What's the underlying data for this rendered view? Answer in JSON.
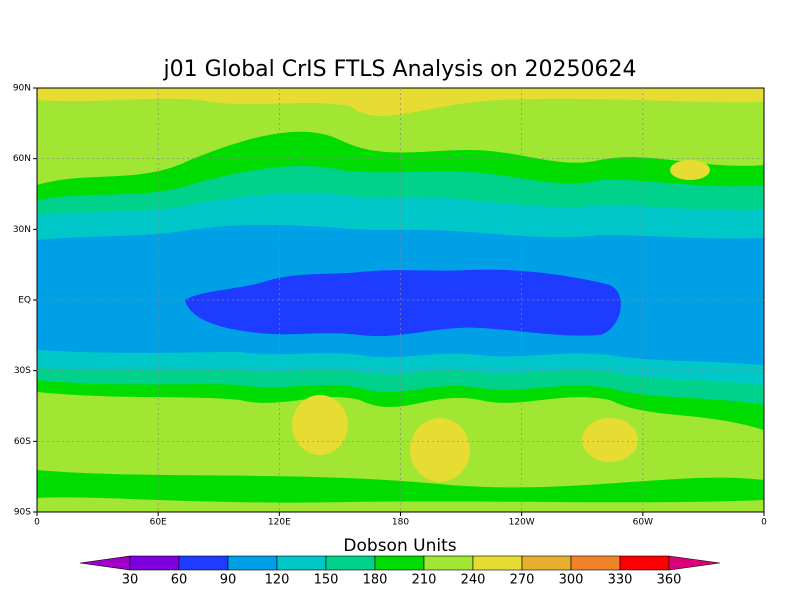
{
  "chart_data": {
    "type": "contour-map",
    "title": "j01 Global CrIS FTLS Analysis on 20250624",
    "xlim": [
      0,
      360
    ],
    "xticks": [
      0,
      {
        "value": 60,
        "label": "60E"
      },
      {
        "value": 120,
        "label": "120E"
      },
      180,
      {
        "value": 240,
        "label": "120W"
      },
      {
        "value": 300,
        "label": "60W"
      },
      {
        "value": 360,
        "label": "0"
      }
    ],
    "ylim": [
      -90,
      90
    ],
    "yticks": [
      {
        "value": 90,
        "label": "90N"
      },
      {
        "value": 60,
        "label": "60N"
      },
      {
        "value": 30,
        "label": "30N"
      },
      {
        "value": 0,
        "label": "EQ"
      },
      {
        "value": -30,
        "label": "30S"
      },
      {
        "value": -60,
        "label": "60S"
      },
      {
        "value": -90,
        "label": "90S"
      }
    ],
    "grid": true,
    "colorbar": {
      "title": "Dobson Units",
      "levels": [
        30,
        60,
        90,
        120,
        150,
        180,
        210,
        240,
        270,
        300,
        330,
        360
      ],
      "colors": [
        "#a000c8",
        "#7d00e0",
        "#1e3cff",
        "#00a0e6",
        "#00c8c8",
        "#00d28c",
        "#00dc00",
        "#a0e632",
        "#e6dc32",
        "#e6af2d",
        "#f08228",
        "#fa0000",
        "#dc0078"
      ]
    }
  }
}
